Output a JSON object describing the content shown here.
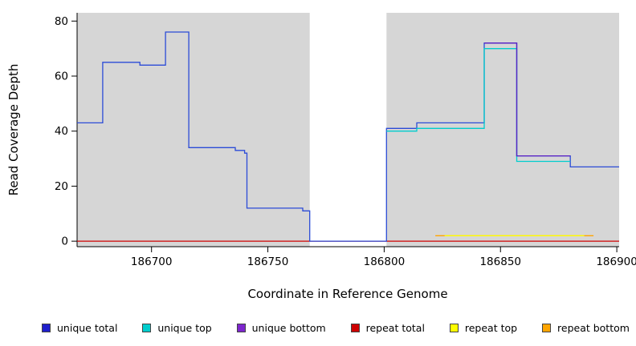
{
  "figure": {
    "background": "#FFFFFF"
  },
  "chart_data": {
    "type": "line",
    "step": true,
    "title": "",
    "xlabel": "Coordinate in Reference Genome",
    "ylabel": "Read Coverage Depth",
    "xlim": [
      186668,
      186901
    ],
    "ylim": [
      0,
      80
    ],
    "xticks": [
      186700,
      186750,
      186800,
      186850,
      186900
    ],
    "yticks": [
      0,
      20,
      40,
      60,
      80
    ],
    "grid": false,
    "panel_background": "#D6D6D6",
    "axis_color": "#000000",
    "gap_region": {
      "start": 186768,
      "end": 186801,
      "color": "#FFFFFF",
      "meaning": "zero-coverage region with white background"
    },
    "series": [
      {
        "name": "repeat bottom",
        "color": "#FFA500",
        "segments": [
          [
            186822,
            186890,
            2
          ]
        ]
      },
      {
        "name": "repeat top",
        "color": "#FFFF00",
        "segments": [
          [
            186826,
            186886,
            2
          ]
        ]
      },
      {
        "name": "repeat total",
        "color": "#CD0000",
        "segments": [
          [
            186668,
            186901,
            0
          ]
        ]
      },
      {
        "name": "unique total",
        "color": "#2B4BD7",
        "segments": [
          [
            186668,
            186679,
            43
          ],
          [
            186679,
            186695,
            65
          ],
          [
            186695,
            186706,
            64
          ],
          [
            186706,
            186716,
            76
          ],
          [
            186716,
            186736,
            34
          ],
          [
            186736,
            186740,
            33
          ],
          [
            186740,
            186741,
            32
          ],
          [
            186741,
            186765,
            12
          ],
          [
            186765,
            186768,
            11
          ],
          [
            186768,
            186801,
            0
          ],
          [
            186801,
            186814,
            41
          ],
          [
            186814,
            186843,
            43
          ],
          [
            186843,
            186857,
            72
          ],
          [
            186857,
            186880,
            31
          ],
          [
            186880,
            186901,
            27
          ]
        ]
      },
      {
        "name": "unique top",
        "color": "#00CDCD",
        "segments": [
          [
            186801,
            186814,
            40
          ],
          [
            186814,
            186843,
            41
          ],
          [
            186843,
            186857,
            70
          ],
          [
            186857,
            186880,
            29
          ]
        ]
      },
      {
        "name": "unique bottom",
        "color": "#5B21C4",
        "segments": [
          [
            186843,
            186857,
            72
          ],
          [
            186857,
            186880,
            31
          ]
        ]
      }
    ],
    "legend": [
      {
        "label": "unique total",
        "color": "#1F1FCC"
      },
      {
        "label": "unique top",
        "color": "#00CDCD"
      },
      {
        "label": "unique bottom",
        "color": "#7D26CD"
      },
      {
        "label": "repeat total",
        "color": "#CD0000"
      },
      {
        "label": "repeat top",
        "color": "#FFFF00"
      },
      {
        "label": "repeat bottom",
        "color": "#FFA500"
      }
    ],
    "legend_position": "bottom"
  }
}
